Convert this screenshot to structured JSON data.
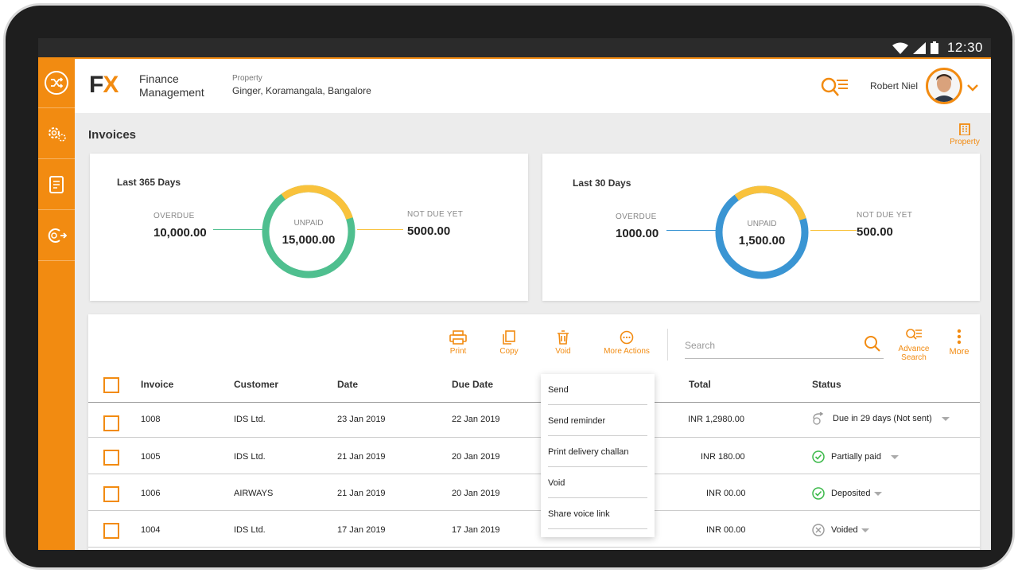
{
  "status_bar": {
    "time": "12:30"
  },
  "app": {
    "logo_fx": "FX",
    "name_line1": "Finance",
    "name_line2": "Management"
  },
  "property": {
    "label": "Property",
    "value": "Ginger, Koramangala, Bangalore"
  },
  "user": {
    "name": "Robert Niel"
  },
  "page": {
    "title": "Invoices",
    "property_button": "Property"
  },
  "summary_cards": [
    {
      "title": "Last 365 Days",
      "overdue_label": "OVERDUE",
      "overdue_value": "10,000.00",
      "unpaid_label": "UNPAID",
      "unpaid_value": "15,000.00",
      "not_due_label": "NOT DUE YET",
      "not_due_value": "5000.00",
      "ring_color": "#4fbf8f",
      "accent_color": "#f9c23c"
    },
    {
      "title": "Last 30 Days",
      "overdue_label": "OVERDUE",
      "overdue_value": "1000.00",
      "unpaid_label": "UNPAID",
      "unpaid_value": "1,500.00",
      "not_due_label": "NOT DUE YET",
      "not_due_value": "500.00",
      "ring_color": "#3a95d3",
      "accent_color": "#f9c23c"
    }
  ],
  "toolbar": {
    "print": "Print",
    "copy": "Copy",
    "void": "Void",
    "more_actions": "More Actions",
    "search_placeholder": "Search",
    "advance_search_line1": "Advance",
    "advance_search_line2": "Search",
    "more": "More"
  },
  "table": {
    "headers": {
      "invoice": "Invoice",
      "customer": "Customer",
      "date": "Date",
      "due_date": "Due Date",
      "total": "Total",
      "status": "Status"
    },
    "rows": [
      {
        "invoice": "1008",
        "customer": "IDS Ltd.",
        "date": "23 Jan 2019",
        "due_date": "22 Jan 2019",
        "total": "INR 1,2980.00",
        "status": "Due in 29 days (Not sent)",
        "status_icon": "send-icon"
      },
      {
        "invoice": "1005",
        "customer": "IDS Ltd.",
        "date": "21 Jan 2019",
        "due_date": "20 Jan 2019",
        "total": "INR 180.00",
        "status": "Partially paid",
        "status_icon": "check-circle-icon"
      },
      {
        "invoice": "1006",
        "customer": "AIRWAYS",
        "date": "21 Jan 2019",
        "due_date": "20 Jan 2019",
        "total": "INR 00.00",
        "status": "Deposited",
        "status_icon": "check-circle-icon"
      },
      {
        "invoice": "1004",
        "customer": "IDS Ltd.",
        "date": "17 Jan 2019",
        "due_date": "17 Jan 2019",
        "total": "INR 00.00",
        "status": "Voided",
        "status_icon": "x-circle-icon"
      }
    ]
  },
  "more_actions_menu": [
    "Send",
    "Send reminder",
    "Print delivery challan",
    "Void",
    "Share voice link"
  ],
  "colors": {
    "accent": "#f28b11",
    "success": "#3cb94a",
    "muted": "#999999"
  }
}
